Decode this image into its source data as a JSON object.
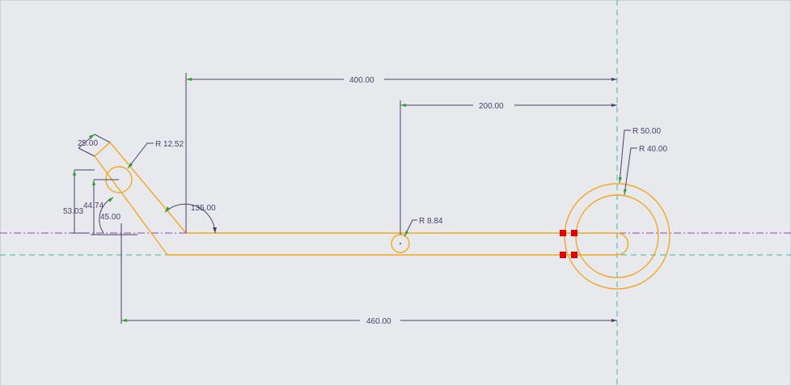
{
  "colors": {
    "background": "#e8e9ec",
    "sketch": "#f5a623",
    "dimension": "#4a3f6b",
    "axis_horizontal": "#a43fb0",
    "centerline": "#3bb9a8",
    "constraint": "#e00000",
    "arrow_tip": "#2aa02a"
  },
  "dimensions": {
    "d400": "400.00",
    "d200": "200.00",
    "d460": "460.00",
    "r50": "R 50.00",
    "r40": "R 40.00",
    "r1252": "R 12.52",
    "r884": "R 8.84",
    "a135": "135.00",
    "d25": "25.00",
    "d5303": "53.03",
    "d4474": "44.74",
    "a45": "45.00"
  }
}
